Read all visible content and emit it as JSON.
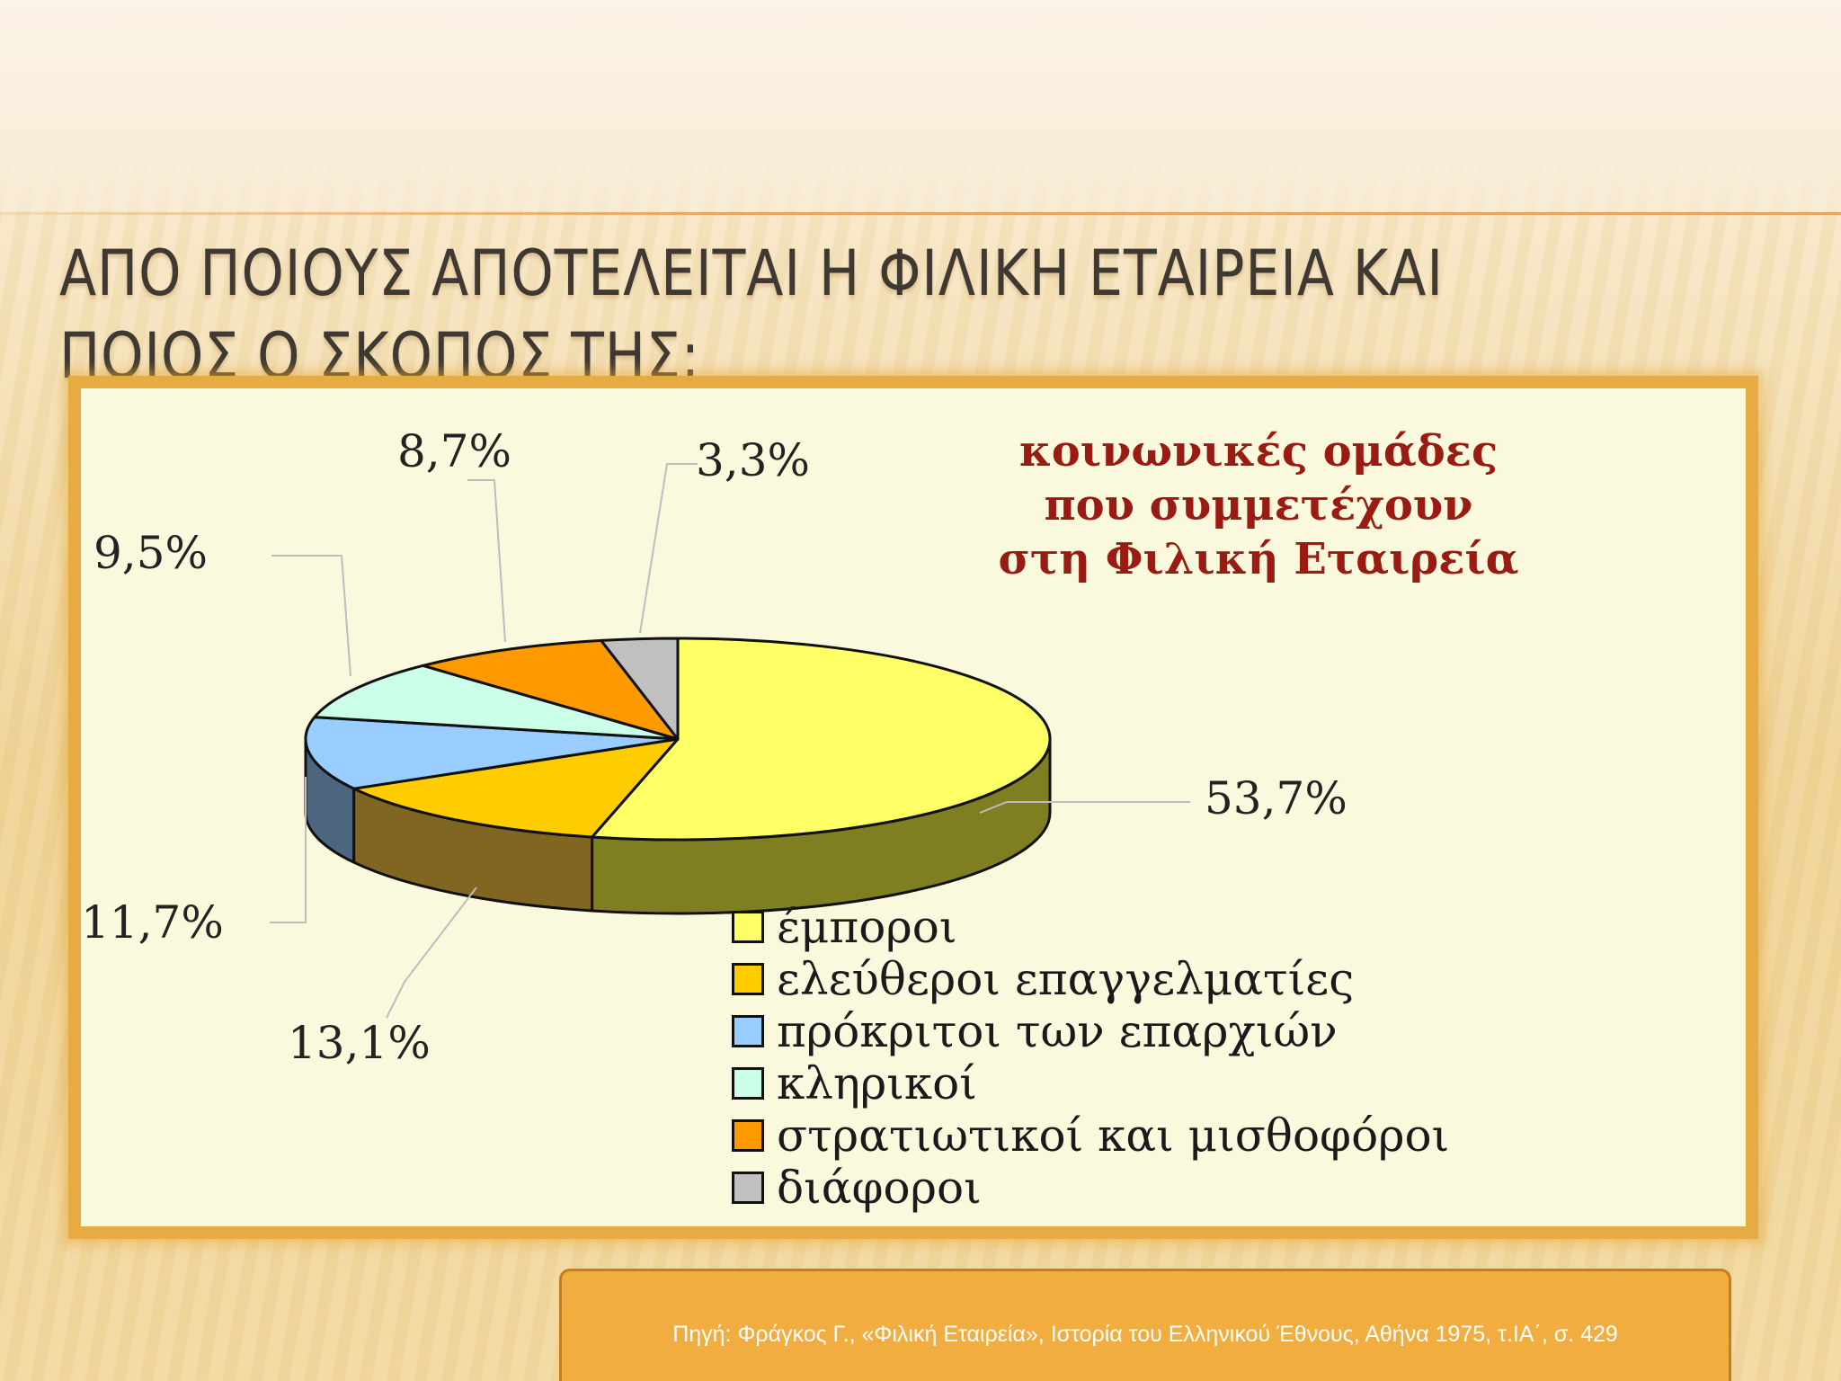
{
  "slide": {
    "title_line1": "ΑΠΟ ΠΟΙΟΥΣ ΑΠΟΤΕΛΕΙΤΑΙ Η ΦΙΛΙΚΗ ΕΤΑΙΡΕΙΑ ΚΑΙ",
    "title_line2": "ΠΟΙΟΣ Ο ΣΚΟΠΟΣ ΤΗΣ;",
    "source": "Πηγή: Φράγκος Γ., «Φιλική Εταιρεία», Ιστορία του Ελληνικού Έθνους, Αθήνα 1975, τ.ΙΑ΄, σ. 429"
  },
  "colors": {
    "frame": "#e7ab43",
    "panel": "#fbf9dd",
    "title_text": "#9a1b12",
    "source_box": "#f2ad41"
  },
  "chart_data": {
    "type": "pie",
    "title_lines": [
      "κοινωνικές ομάδες",
      "που συμμετέχουν",
      "στη Φιλική Εταιρεία"
    ],
    "legend_position": "bottom-right",
    "series": [
      {
        "name": "έμποροι",
        "value": 53.7,
        "label": "53,7%",
        "color": "#ffff66",
        "side_color": "#7f7f22"
      },
      {
        "name": "ελεύθεροι επαγγελματίες",
        "value": 13.1,
        "label": "13,1%",
        "color": "#ffcc00",
        "side_color": "#806620"
      },
      {
        "name": "πρόκριτοι των επαρχιών",
        "value": 11.7,
        "label": "11,7%",
        "color": "#99ccff",
        "side_color": "#4d6680"
      },
      {
        "name": "κληρικοί",
        "value": 9.5,
        "label": "9,5%",
        "color": "#ccffe8",
        "side_color": "#668074"
      },
      {
        "name": "στρατιωτικοί και μισθοφόροι",
        "value": 8.7,
        "label": "8,7%",
        "color": "#ff9900",
        "side_color": "#804d00"
      },
      {
        "name": "διάφοροι",
        "value": 3.3,
        "label": "3,3%",
        "color": "#c0c0c0",
        "side_color": "#606060"
      }
    ]
  }
}
